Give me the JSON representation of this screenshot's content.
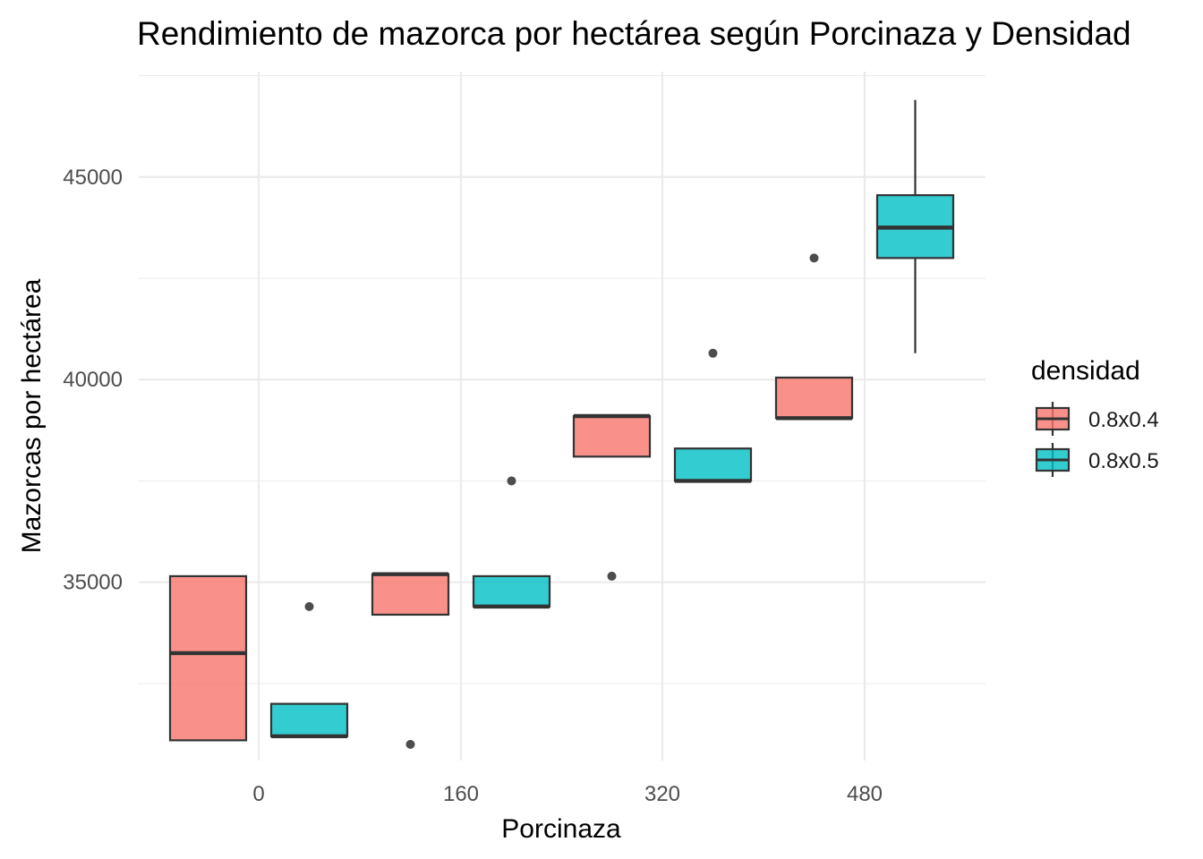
{
  "chart_data": {
    "type": "boxplot",
    "title": "Rendimiento de mazorca por hectárea según Porcinaza y Densidad",
    "xlabel": "Porcinaza",
    "ylabel": "Mazorcas por hectárea",
    "categories": [
      "0",
      "160",
      "320",
      "480"
    ],
    "ylim": [
      30600,
      47600
    ],
    "y_ticks": [
      35000,
      40000,
      45000
    ],
    "grid": true,
    "legend": {
      "title": "densidad",
      "position": "right",
      "entries": [
        "0.8x0.4",
        "0.8x0.5"
      ]
    },
    "series": [
      {
        "name": "0.8x0.4",
        "color": "#F8766D",
        "boxes": [
          {
            "category": "0",
            "q1": 31100,
            "median": 33250,
            "q3": 35150,
            "whisker_low": 31100,
            "whisker_high": 35150,
            "outliers": []
          },
          {
            "category": "160",
            "q1": 34200,
            "median": 35200,
            "q3": 35200,
            "whisker_low": 34200,
            "whisker_high": 35200,
            "outliers": [
              31000
            ]
          },
          {
            "category": "320",
            "q1": 38100,
            "median": 39100,
            "q3": 39100,
            "whisker_low": 38100,
            "whisker_high": 39100,
            "outliers": [
              35150
            ]
          },
          {
            "category": "480",
            "q1": 39050,
            "median": 39050,
            "q3": 40050,
            "whisker_low": 39050,
            "whisker_high": 40050,
            "outliers": [
              43000
            ]
          }
        ]
      },
      {
        "name": "0.8x0.5",
        "color": "#00BFC4",
        "boxes": [
          {
            "category": "0",
            "q1": 31200,
            "median": 31200,
            "q3": 32000,
            "whisker_low": 31200,
            "whisker_high": 32000,
            "outliers": [
              34400
            ]
          },
          {
            "category": "160",
            "q1": 34400,
            "median": 34400,
            "q3": 35150,
            "whisker_low": 34400,
            "whisker_high": 35150,
            "outliers": [
              37500
            ]
          },
          {
            "category": "320",
            "q1": 37500,
            "median": 37500,
            "q3": 38300,
            "whisker_low": 37500,
            "whisker_high": 38300,
            "outliers": [
              40650
            ]
          },
          {
            "category": "480",
            "q1": 43000,
            "median": 43750,
            "q3": 44550,
            "whisker_low": 40650,
            "whisker_high": 46900,
            "outliers": []
          }
        ]
      }
    ]
  }
}
